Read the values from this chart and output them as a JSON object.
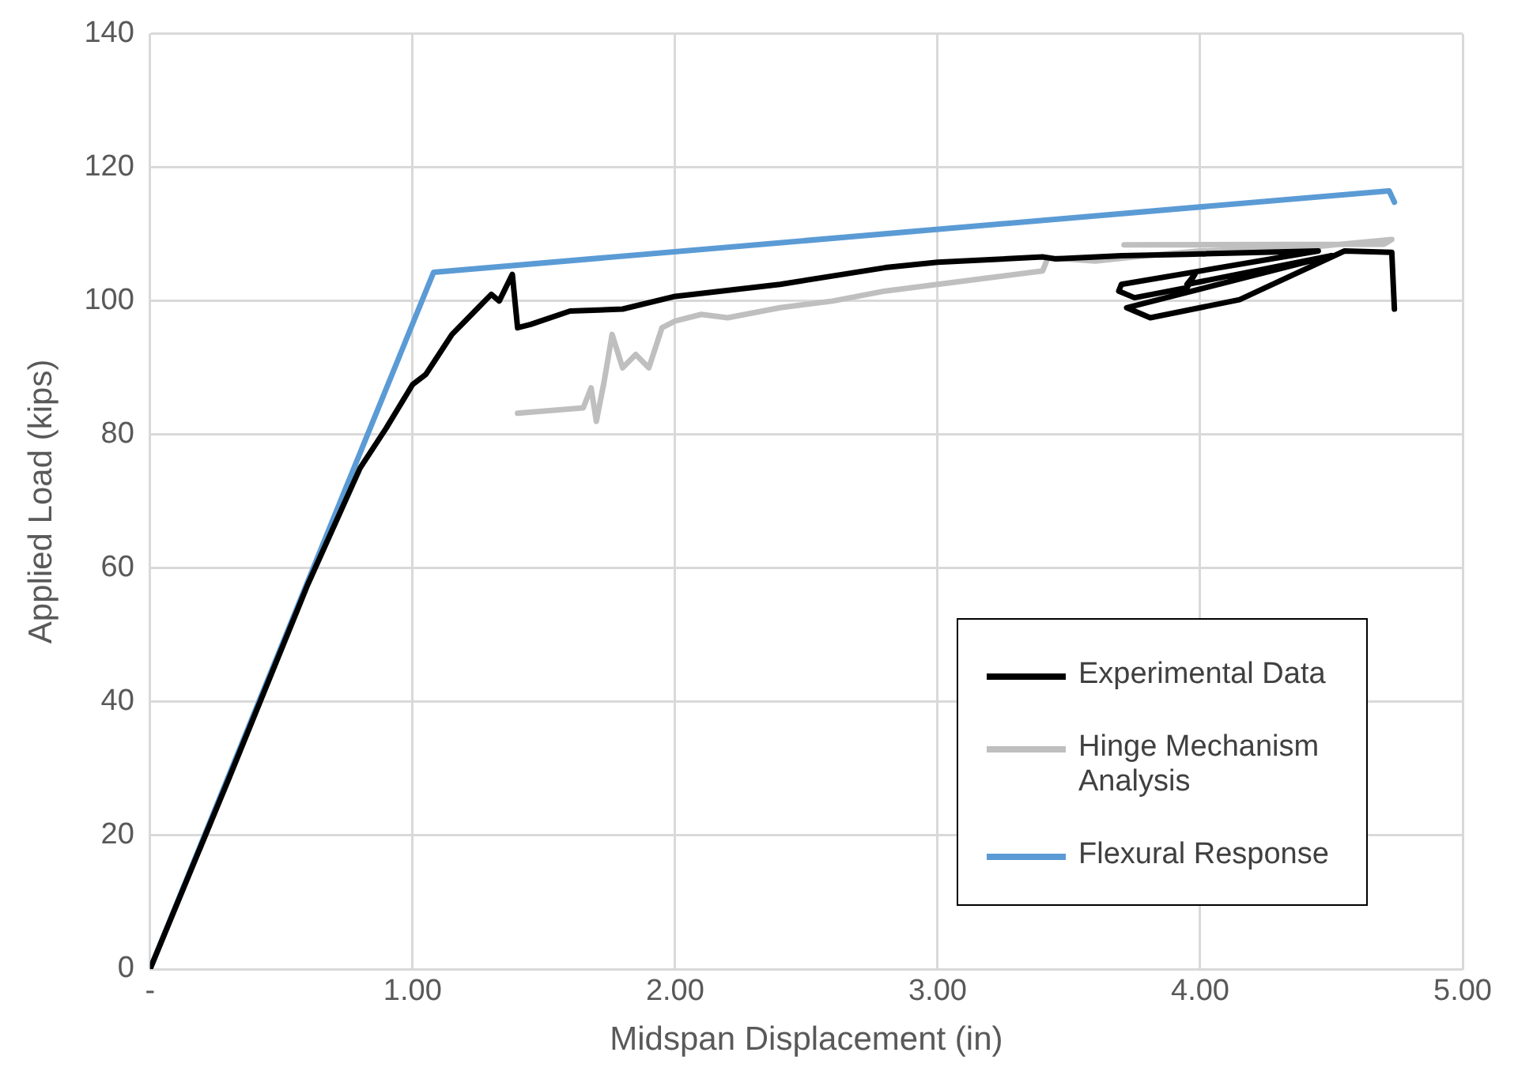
{
  "chart_data": {
    "type": "line",
    "xlabel": "Midspan Displacement (in)",
    "ylabel": "Applied Load (kips)",
    "xlim": [
      0,
      5
    ],
    "xticks": [
      {
        "value": 0,
        "label": "-"
      },
      {
        "value": 1,
        "label": "1.00"
      },
      {
        "value": 2,
        "label": "2.00"
      },
      {
        "value": 3,
        "label": "3.00"
      },
      {
        "value": 4,
        "label": "4.00"
      },
      {
        "value": 5,
        "label": "5.00"
      }
    ],
    "ylim": [
      0,
      140
    ],
    "yticks": [
      0,
      20,
      40,
      60,
      80,
      100,
      120,
      140
    ],
    "grid": true,
    "legend": "bottom right",
    "marker": "none",
    "line_style": "solid",
    "series": [
      {
        "name": "Experimental Data",
        "color": "#000000",
        "x": [
          0,
          0.3,
          0.6,
          0.8,
          0.9,
          1.0,
          1.05,
          1.1,
          1.15,
          1.2,
          1.25,
          1.3,
          1.33,
          1.38,
          1.4,
          1.45,
          1.6,
          1.8,
          2.0,
          2.4,
          2.8,
          3.0,
          3.4,
          3.45,
          3.7,
          3.95,
          4.45,
          3.7,
          3.69,
          3.75,
          3.95,
          3.98,
          3.95,
          4.5,
          3.72,
          3.81,
          4.15,
          4.55,
          4.73,
          4.74
        ],
        "values": [
          0,
          28.5,
          57.5,
          75,
          81,
          87.5,
          89,
          92,
          95,
          97,
          99,
          101,
          100,
          104,
          96,
          96.5,
          98.5,
          98.8,
          100.7,
          102.5,
          105,
          105.8,
          106.6,
          106.3,
          106.8,
          107,
          107.5,
          102.5,
          101.5,
          100.5,
          102,
          104,
          102.5,
          106.8,
          99,
          97.5,
          100.2,
          107.5,
          107.3,
          98.8
        ]
      },
      {
        "name": "Hinge Mechanism Analysis",
        "color": "#bfbfbf",
        "x": [
          1.4,
          1.65,
          1.68,
          1.7,
          1.73,
          1.76,
          1.8,
          1.85,
          1.9,
          1.95,
          2.0,
          2.1,
          2.2,
          2.4,
          2.6,
          2.8,
          3.0,
          3.2,
          3.4,
          3.42,
          3.6,
          3.8,
          4.0,
          4.4,
          4.73,
          4.7,
          3.71
        ],
        "values": [
          83.2,
          84,
          87,
          82,
          88,
          95,
          90,
          92,
          90,
          96,
          97,
          98,
          97.5,
          99,
          100,
          101.5,
          102.5,
          103.5,
          104.5,
          106.5,
          106,
          106.8,
          107.5,
          108,
          109.2,
          108.5,
          108.4
        ]
      },
      {
        "name": "Flexural Response",
        "color": "#5b9bd5",
        "x": [
          0,
          1.08,
          4.72,
          4.74
        ],
        "values": [
          0,
          104.3,
          116.5,
          114.8
        ]
      }
    ]
  }
}
